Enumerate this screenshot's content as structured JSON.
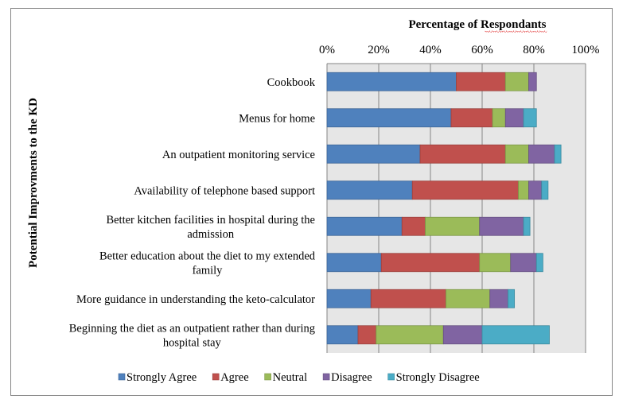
{
  "chart_data": {
    "type": "bar",
    "orientation": "horizontal",
    "stacked": true,
    "title": "Percentage of Respondants",
    "xlabel": "Percentage of Respondants",
    "ylabel": "Potential Improvments to the KD",
    "xlim": [
      0,
      100
    ],
    "x_ticks": [
      "0%",
      "20%",
      "40%",
      "60%",
      "80%",
      "100%"
    ],
    "x_axis_position": "top",
    "grid": true,
    "legend_position": "bottom",
    "categories": [
      [
        "Cookbook"
      ],
      [
        "Menus for home"
      ],
      [
        "An outpatient monitoring  service"
      ],
      [
        "Availability of telephone based support"
      ],
      [
        "Better kitchen facilities  in hospital during the",
        "admission"
      ],
      [
        "Better education about the diet to my extended",
        "family"
      ],
      [
        "More guidance in understanding the keto-calculator"
      ],
      [
        "Beginning the diet as an outpatient rather than during",
        "hospital stay"
      ]
    ],
    "series": [
      {
        "name": "Strongly Agree",
        "color": "#4f81bd",
        "values": [
          50,
          48,
          36,
          33,
          29,
          21,
          17,
          12
        ]
      },
      {
        "name": "Agree",
        "color": "#c0504d",
        "values": [
          19,
          16,
          33,
          41,
          9,
          38,
          29,
          7
        ]
      },
      {
        "name": "Neutral",
        "color": "#9bbb59",
        "values": [
          9,
          5,
          9,
          4,
          21,
          12,
          17,
          26
        ]
      },
      {
        "name": "Disagree",
        "color": "#8064a2",
        "values": [
          3,
          7,
          10,
          5,
          17,
          10,
          7,
          15
        ]
      },
      {
        "name": "Strongly Disagree",
        "color": "#4bacc6",
        "values": [
          0,
          5,
          2.5,
          2.5,
          2.5,
          2.5,
          2.5,
          26
        ]
      }
    ]
  }
}
